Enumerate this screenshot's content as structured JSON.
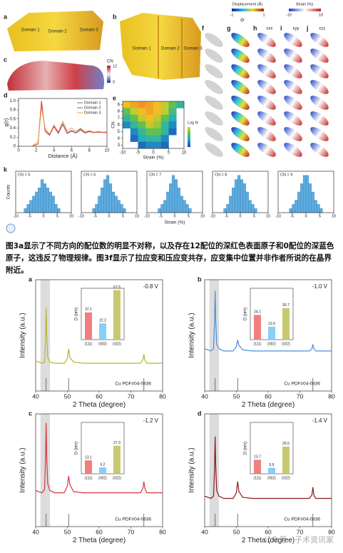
{
  "figure": {
    "panels": [
      "a",
      "b",
      "c",
      "f",
      "g",
      "h",
      "i",
      "j",
      "k"
    ],
    "domains_a": [
      "Domain 1",
      "Domain 2",
      "Domain 3"
    ],
    "domains_b": [
      "Domain 1",
      "Domain 2",
      "Domain 3"
    ],
    "cn_colorbar": {
      "title": "CN",
      "clim": [
        0,
        12
      ]
    },
    "displacement_colorbar": {
      "title": "Displacement (Å)",
      "clim": [
        -1,
        1
      ]
    },
    "strain_colorbar": {
      "title": "Strain (%)",
      "clim": [
        -10,
        10
      ]
    },
    "column_titles": [
      "Δr",
      "εxx",
      "εyy",
      "εzz"
    ]
  },
  "paragraph": "图3a显示了不同方向的配位数的明显不对称，以及存在12配位的深红色表面原子和0配位的深蓝色原子，这违反了物理规律。图3f显示了拉应变和压应变共存，应变集中位置并非作者所说的在晶界附近。",
  "watermark": "公众号 · 子术资讯家",
  "chart_data": [
    {
      "type": "line",
      "label": "d",
      "xlabel": "Distance (Å)",
      "ylabel": "g(r)",
      "xlim": [
        0,
        10
      ],
      "xticks": [
        0,
        2,
        4,
        6,
        8,
        10
      ],
      "ylim": [
        0,
        1.05
      ],
      "yticks": [
        0,
        0.2,
        0.4,
        0.6,
        0.8,
        {
          "value": 1,
          "label": "1.0"
        }
      ],
      "x": [
        1.5,
        2.2,
        2.6,
        3.0,
        3.5,
        4.0,
        4.5,
        5.0,
        5.5,
        6.0,
        6.5,
        7.0,
        7.5,
        8.0,
        8.5,
        9.0,
        9.5,
        10
      ],
      "series": [
        {
          "name": "Domain 1",
          "color": "#4a7fd4",
          "values": [
            0,
            0.05,
            0.95,
            0.35,
            0.25,
            0.45,
            0.3,
            0.5,
            0.3,
            0.35,
            0.3,
            0.38,
            0.3,
            0.33,
            0.3,
            0.32,
            0.3,
            0.31
          ]
        },
        {
          "name": "Domain 2",
          "color": "#d9363e",
          "values": [
            0,
            0.05,
            1.0,
            0.33,
            0.24,
            0.43,
            0.28,
            0.48,
            0.28,
            0.33,
            0.29,
            0.36,
            0.29,
            0.32,
            0.3,
            0.31,
            0.3,
            0.3
          ]
        },
        {
          "name": "Domain 3",
          "color": "#f0a030",
          "values": [
            0,
            0.1,
            0.85,
            0.4,
            0.27,
            0.47,
            0.32,
            0.55,
            0.35,
            0.4,
            0.33,
            0.4,
            0.32,
            0.35,
            0.31,
            0.33,
            0.31,
            0.32
          ]
        }
      ]
    },
    {
      "type": "heatmap",
      "label": "e",
      "xlabel": "Strain (%)",
      "ylabel": "CN",
      "colorbar_title": "Log N",
      "clim": [
        0,
        3
      ],
      "xlim": [
        -10,
        10
      ],
      "xticks": [
        -10,
        -5,
        0,
        5,
        10
      ],
      "ylim": [
        2.5,
        9.5
      ],
      "yticks": [
        3,
        4,
        5,
        6,
        7,
        8,
        9
      ],
      "x": [
        -8.75,
        -6.25,
        -3.75,
        -1.25,
        1.25,
        3.75,
        6.25,
        8.75
      ],
      "y": [
        9,
        8,
        7,
        6,
        5,
        4,
        3
      ],
      "z": [
        [
          2.5,
          2.8,
          3,
          2.8,
          2.5,
          2,
          1.5,
          1
        ],
        [
          1.5,
          2,
          2.5,
          2.8,
          2.5,
          2,
          1.2,
          null
        ],
        [
          1,
          1.5,
          2,
          2.5,
          2,
          1.5,
          0.8,
          null
        ],
        [
          0.5,
          1,
          1.5,
          2,
          1.8,
          1,
          0.5,
          null
        ],
        [
          null,
          0.5,
          1,
          1.5,
          1.5,
          1,
          0.3,
          null
        ],
        [
          null,
          0.3,
          0.8,
          1,
          1,
          0.5,
          null,
          null
        ],
        [
          null,
          null,
          0.3,
          0.5,
          0.5,
          0.3,
          null,
          null
        ]
      ]
    },
    {
      "type": "histogram",
      "xlabel": "Strain (%)",
      "ylabel": "Counts",
      "color": "#5dade2",
      "xlim": [
        -10,
        10
      ],
      "xticks": [
        -10,
        -5,
        0,
        5,
        10
      ],
      "ylim": [
        0,
        10
      ],
      "bins": [
        -7,
        -6,
        -5,
        -4,
        -3,
        -2,
        -1,
        0,
        1,
        2,
        3,
        4,
        5,
        6,
        7
      ],
      "series": [
        {
          "name": "CN = 5",
          "values": [
            1,
            2,
            3,
            4,
            5,
            6,
            8,
            7,
            6,
            5,
            4,
            2,
            1,
            0
          ]
        },
        {
          "name": "CN = 6",
          "values": [
            0,
            1,
            2,
            4,
            6,
            8,
            9,
            7,
            5,
            4,
            3,
            2,
            1,
            0
          ]
        },
        {
          "name": "CN = 7",
          "values": [
            0,
            1,
            2,
            3,
            5,
            7,
            9,
            8,
            6,
            4,
            3,
            2,
            1,
            0
          ]
        },
        {
          "name": "CN = 8",
          "values": [
            0,
            1,
            2,
            4,
            6,
            8,
            9,
            8,
            7,
            5,
            3,
            2,
            1,
            0
          ]
        },
        {
          "name": "CN = 9",
          "values": [
            0,
            1,
            2,
            3,
            5,
            7,
            9,
            9,
            7,
            5,
            3,
            2,
            1,
            0
          ]
        }
      ]
    },
    {
      "type": "line",
      "label": "a",
      "annotation": "-0.8 V",
      "reference": "Cu PDF#04-0836",
      "xlabel": "2 Theta (degree)",
      "ylabel": "Intensity (a.u.)",
      "xlim": [
        40,
        80
      ],
      "xticks": [
        40,
        50,
        60,
        70,
        80
      ],
      "ylim": [
        0,
        100
      ],
      "color": "#b5b530",
      "highlight": [
        41.5,
        44.5
      ],
      "ref_peaks": [
        43.3,
        50.4,
        74.1
      ],
      "x": [
        40,
        41,
        42,
        42.8,
        43.1,
        43.3,
        43.5,
        43.8,
        44.5,
        46,
        49,
        50,
        50.4,
        50.8,
        52,
        55,
        60,
        65,
        70,
        73,
        73.8,
        74.1,
        74.4,
        75,
        78,
        80
      ],
      "values": [
        27,
        26,
        25,
        26,
        45,
        75,
        50,
        30,
        26,
        25,
        25,
        29,
        38,
        30,
        26,
        25,
        25,
        25,
        25,
        25,
        28,
        33,
        28,
        25,
        25,
        25
      ],
      "inset": {
        "type": "bar",
        "ylabel": "D (nm)",
        "ylim": [
          0,
          70
        ],
        "categories": [
          "(111)",
          "(002)",
          "(022)"
        ],
        "colors": [
          "#f08080",
          "#87cefa",
          "#c8c870"
        ],
        "values": [
          37.1,
          22.2,
          67.5
        ]
      }
    },
    {
      "type": "line",
      "label": "b",
      "annotation": "-1.0 V",
      "reference": "Cu PDF#04-0836",
      "xlabel": "2 Theta (degree)",
      "ylabel": "Intensity (a.u.)",
      "xlim": [
        40,
        80
      ],
      "xticks": [
        40,
        50,
        60,
        70,
        80
      ],
      "ylim": [
        0,
        100
      ],
      "color": "#4a90d9",
      "highlight": [
        41.5,
        44.5
      ],
      "ref_peaks": [
        43.3,
        50.4,
        74.1
      ],
      "x": [
        40,
        41,
        42,
        42.8,
        43.1,
        43.3,
        43.5,
        43.8,
        44.5,
        46,
        49,
        50,
        50.4,
        50.8,
        52,
        55,
        60,
        65,
        70,
        73,
        73.8,
        74.1,
        74.4,
        75,
        78,
        80
      ],
      "values": [
        38,
        37,
        36,
        38,
        60,
        90,
        62,
        42,
        38,
        36,
        36,
        40,
        46,
        41,
        37,
        36,
        36,
        36,
        36,
        36,
        38,
        42,
        38,
        36,
        36,
        36
      ],
      "inset": {
        "type": "bar",
        "ylabel": "D (nm)",
        "ylim": [
          0,
          50
        ],
        "categories": [
          "(111)",
          "(002)",
          "(022)"
        ],
        "colors": [
          "#f08080",
          "#87cefa",
          "#c8c870"
        ],
        "values": [
          24.1,
          12.6,
          30.7
        ]
      }
    },
    {
      "type": "line",
      "label": "c",
      "annotation": "-1.2 V",
      "reference": "Cu PDF#04-0836",
      "xlabel": "2 Theta (degree)",
      "ylabel": "Intensity (a.u.)",
      "xlim": [
        40,
        80
      ],
      "xticks": [
        40,
        50,
        60,
        70,
        80
      ],
      "ylim": [
        0,
        100
      ],
      "color": "#d9363e",
      "highlight": [
        41.5,
        44.5
      ],
      "ref_peaks": [
        43.3,
        50.4,
        74.1
      ],
      "x": [
        40,
        41,
        42,
        42.8,
        43.1,
        43.3,
        43.5,
        43.8,
        44.5,
        46,
        49,
        50,
        50.4,
        50.8,
        52,
        55,
        60,
        65,
        70,
        73,
        73.8,
        74.1,
        74.4,
        75,
        78,
        80
      ],
      "values": [
        32,
        31,
        30,
        33,
        60,
        92,
        60,
        38,
        32,
        30,
        30,
        36,
        45,
        37,
        31,
        30,
        30,
        30,
        30,
        30,
        34,
        40,
        34,
        30,
        30,
        30
      ],
      "inset": {
        "type": "bar",
        "ylabel": "D (nm)",
        "ylim": [
          0,
          50
        ],
        "categories": [
          "(111)",
          "(002)",
          "(022)"
        ],
        "colors": [
          "#f08080",
          "#87cefa",
          "#c8c870"
        ],
        "values": [
          13.1,
          6.2,
          27.3
        ]
      }
    },
    {
      "type": "line",
      "label": "d",
      "annotation": "-1.4 V",
      "reference": "Cu PDF#04-0836",
      "xlabel": "2 Theta (degree)",
      "ylabel": "Intensity (a.u.)",
      "xlim": [
        40,
        80
      ],
      "xticks": [
        40,
        50,
        60,
        70,
        80
      ],
      "ylim": [
        0,
        100
      ],
      "color": "#8b1a1a",
      "highlight": [
        41.5,
        44.5
      ],
      "ref_peaks": [
        43.3,
        50.4,
        74.1
      ],
      "x": [
        40,
        41,
        42,
        42.8,
        43.1,
        43.3,
        43.5,
        43.8,
        44.5,
        46,
        49,
        50,
        50.4,
        50.8,
        52,
        55,
        60,
        65,
        70,
        73,
        73.8,
        74.1,
        74.4,
        75,
        78,
        80
      ],
      "values": [
        27,
        26,
        25,
        27,
        50,
        80,
        52,
        32,
        27,
        25,
        25,
        30,
        40,
        31,
        26,
        25,
        25,
        25,
        25,
        25,
        28,
        35,
        28,
        25,
        25,
        25
      ],
      "inset": {
        "type": "bar",
        "ylabel": "D (nm)",
        "ylim": [
          0,
          50
        ],
        "categories": [
          "(111)",
          "(002)",
          "(022)"
        ],
        "colors": [
          "#f08080",
          "#87cefa",
          "#c8c870"
        ],
        "values": [
          13.7,
          5.9,
          26.5
        ]
      }
    }
  ]
}
